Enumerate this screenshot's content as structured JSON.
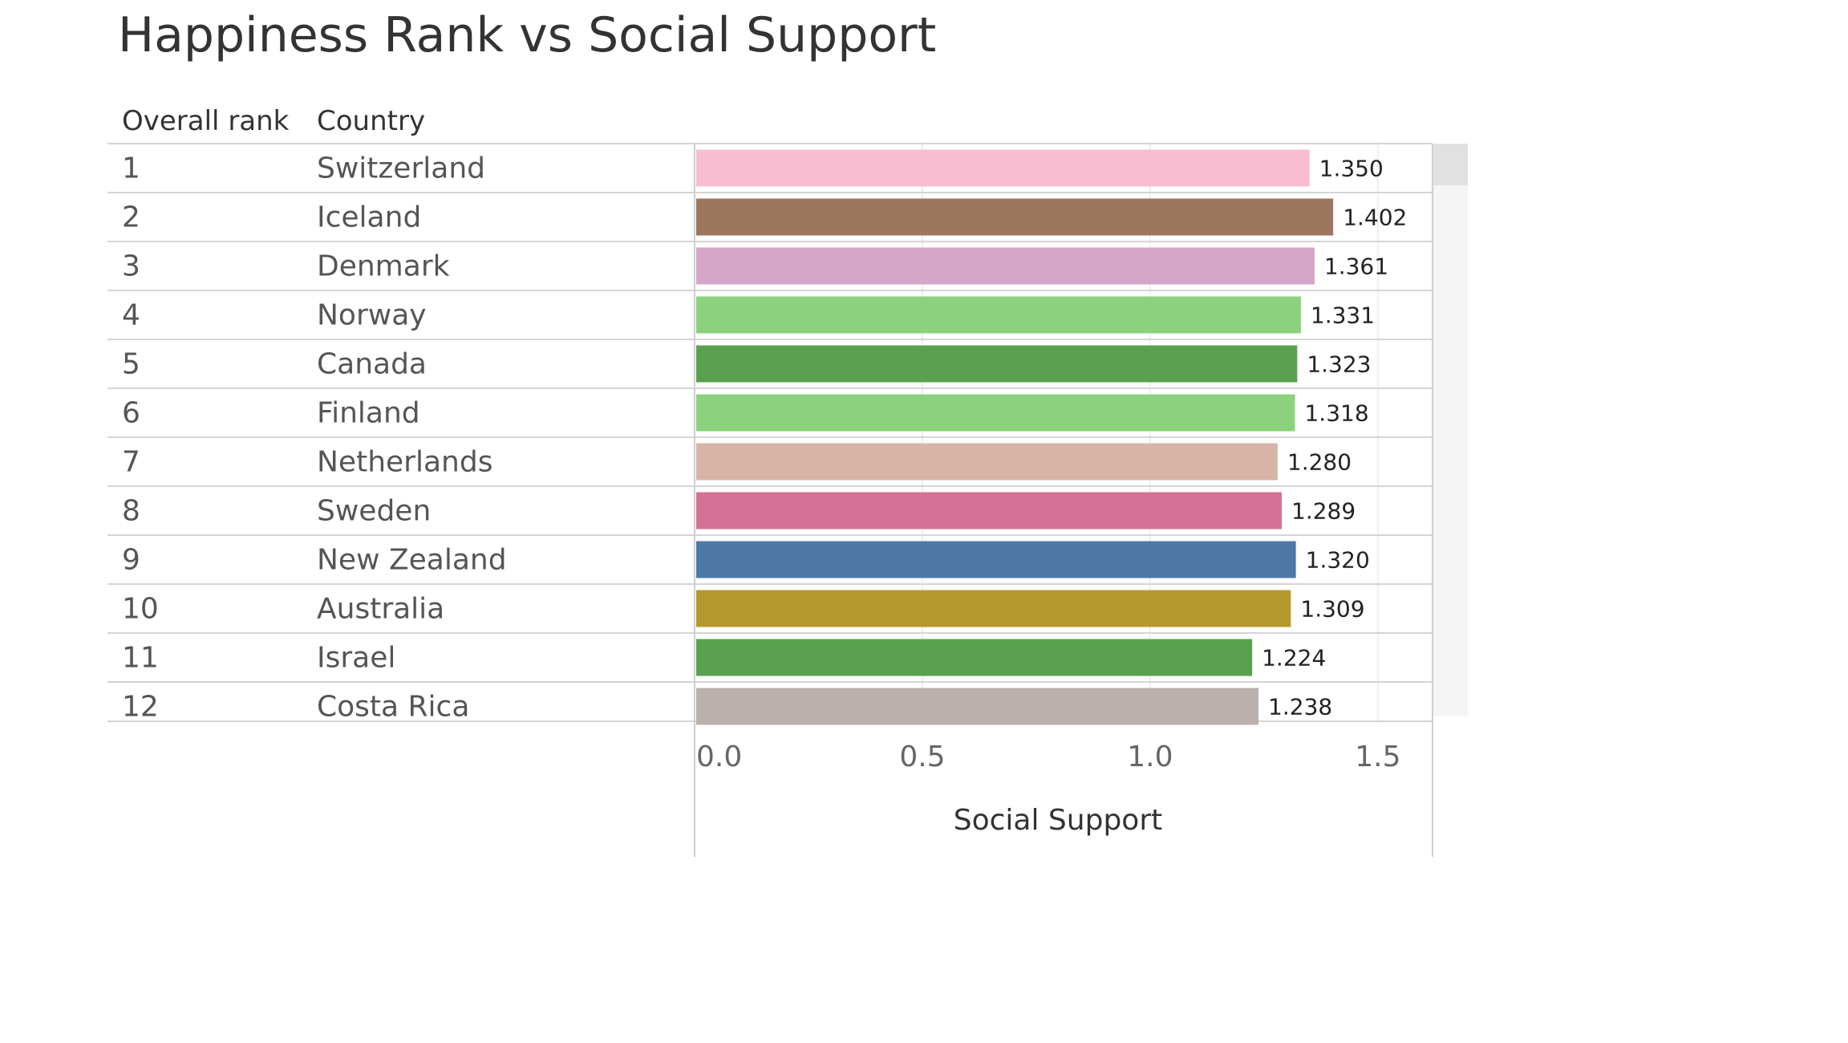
{
  "chart_data": {
    "type": "bar",
    "title": "Happiness Rank vs Social Support",
    "row_headers": [
      "Overall rank",
      "Country"
    ],
    "ranks": [
      "1",
      "2",
      "3",
      "4",
      "5",
      "6",
      "7",
      "8",
      "9",
      "10",
      "11",
      "12"
    ],
    "categories": [
      "Switzerland",
      "Iceland",
      "Denmark",
      "Norway",
      "Canada",
      "Finland",
      "Netherlands",
      "Sweden",
      "New Zealand",
      "Australia",
      "Israel",
      "Costa Rica"
    ],
    "values": [
      1.35,
      1.402,
      1.361,
      1.331,
      1.323,
      1.318,
      1.28,
      1.289,
      1.32,
      1.309,
      1.224,
      1.238
    ],
    "value_labels": [
      "1.350",
      "1.402",
      "1.361",
      "1.331",
      "1.323",
      "1.318",
      "1.280",
      "1.289",
      "1.320",
      "1.309",
      "1.224",
      "1.238"
    ],
    "colors": [
      "#F9BDD1",
      "#9D7660",
      "#D4A6C8",
      "#8CD17D",
      "#59A14F",
      "#8CD17D",
      "#D7B5A6",
      "#D37295",
      "#4E79A7",
      "#B6992D",
      "#59A14F",
      "#BAB0AC"
    ],
    "xlabel": "Social Support",
    "xlim": [
      0,
      1.62
    ],
    "x_ticks": [
      0,
      0.5,
      1.0,
      1.5
    ],
    "x_tick_labels": [
      "0.0",
      "0.5",
      "1.0",
      "1.5"
    ],
    "grid": true,
    "orientation": "horizontal"
  }
}
